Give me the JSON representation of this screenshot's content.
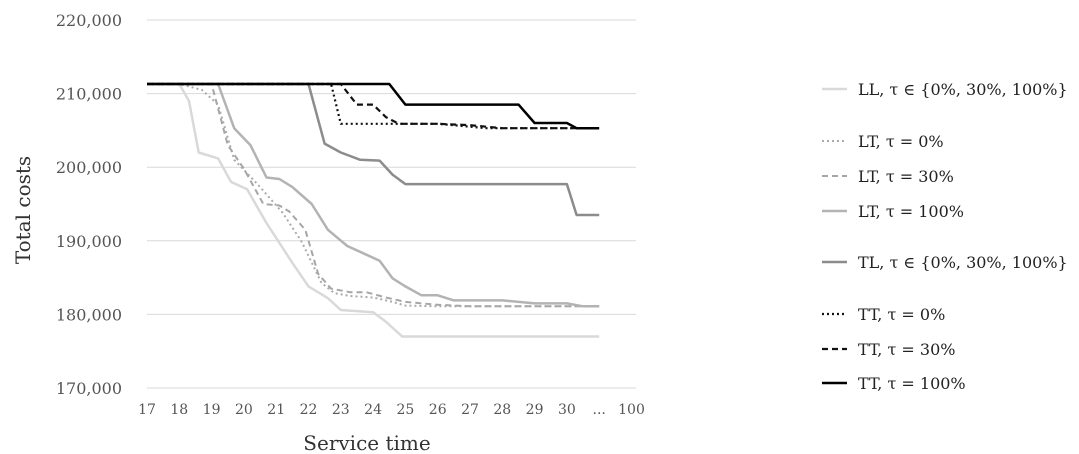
{
  "chart_data": {
    "type": "line",
    "title": "",
    "xlabel": "Service time",
    "ylabel": "Total costs",
    "x_tick_labels": [
      "17",
      "18",
      "19",
      "20",
      "21",
      "22",
      "23",
      "24",
      "25",
      "26",
      "27",
      "28",
      "29",
      "30",
      "...",
      "100"
    ],
    "y_tick_labels": [
      "170,000",
      "180,000",
      "190,000",
      "200,000",
      "210,000",
      "220,000"
    ],
    "ylim": [
      170000,
      220000
    ],
    "grid": "horizontal",
    "legend_placement": "right",
    "series": [
      {
        "name": "LL, τ ∈ {0%, 30%, 100%}",
        "color": "#d9d9d9",
        "dash": "solid",
        "width": 2.5,
        "x": [
          17,
          18,
          18.3,
          18.6,
          19.2,
          19.6,
          20.1,
          20.7,
          21.5,
          22.0,
          22.6,
          23.0,
          24.0,
          24.4,
          24.9,
          30,
          30.5,
          31
        ],
        "y": [
          211300,
          211300,
          209000,
          202000,
          201200,
          198000,
          197000,
          192400,
          187000,
          183800,
          182200,
          180600,
          180300,
          179000,
          177000,
          177000,
          177000,
          177000
        ]
      },
      {
        "name": "LT, τ = 0%",
        "color": "#aaaaaa",
        "dash": "dot",
        "width": 2,
        "x": [
          17,
          18,
          18.7,
          19.2,
          19.7,
          20.4,
          21.2,
          21.8,
          22.4,
          22.8,
          23.3,
          24.0,
          24.6,
          25.0,
          26,
          30,
          30.5,
          31
        ],
        "y": [
          211300,
          211300,
          210500,
          208500,
          201000,
          197800,
          193800,
          189800,
          184300,
          182900,
          182500,
          182300,
          181700,
          181200,
          181100,
          181100,
          181100,
          181100
        ]
      },
      {
        "name": "LT, τ = 30%",
        "color": "#a6a6a6",
        "dash": "dash",
        "width": 2,
        "x": [
          17,
          18,
          19,
          19.5,
          20.0,
          20.6,
          21.1,
          21.4,
          21.9,
          22.3,
          22.7,
          23.3,
          23.8,
          24.4,
          25.0,
          26,
          27,
          30,
          30.5,
          31
        ],
        "y": [
          211300,
          211300,
          211300,
          203000,
          199800,
          195000,
          194800,
          194000,
          191500,
          185500,
          183500,
          183000,
          183000,
          182300,
          181700,
          181300,
          181100,
          181100,
          181100,
          181100
        ]
      },
      {
        "name": "LT, τ = 100%",
        "color": "#b3b3b3",
        "dash": "solid",
        "width": 2.5,
        "x": [
          17,
          18,
          19.2,
          19.7,
          20.2,
          20.7,
          21.1,
          21.5,
          22.1,
          22.6,
          23.2,
          23.7,
          24.2,
          24.6,
          25.0,
          25.5,
          26.0,
          26.5,
          27,
          28,
          29,
          30,
          30.5,
          31
        ],
        "y": [
          211300,
          211300,
          211300,
          205300,
          203000,
          198600,
          198400,
          197300,
          195000,
          191500,
          189300,
          188300,
          187300,
          184900,
          183800,
          182600,
          182600,
          181900,
          181900,
          181900,
          181500,
          181500,
          181100,
          181100
        ]
      },
      {
        "name": "TL, τ ∈ {0%, 30%, 100%}",
        "color": "#8c8c8c",
        "dash": "solid",
        "width": 2.5,
        "x": [
          17,
          18,
          22,
          22.5,
          23.0,
          23.6,
          24.2,
          24.6,
          25.0,
          26,
          27,
          28,
          29,
          30,
          30.3,
          30.6,
          31
        ],
        "y": [
          211300,
          211300,
          211300,
          203200,
          202000,
          201000,
          200900,
          199000,
          197700,
          197700,
          197700,
          197700,
          197700,
          197700,
          193500,
          193500,
          193500
        ]
      },
      {
        "name": "TT, τ = 0%",
        "color": "#111111",
        "dash": "dot",
        "width": 2.2,
        "x": [
          17,
          18,
          22,
          22.7,
          23.0,
          24,
          25,
          26,
          27,
          27.5,
          28,
          29,
          30,
          31
        ],
        "y": [
          211300,
          211300,
          211300,
          211300,
          205900,
          205900,
          205900,
          205900,
          205500,
          205300,
          205300,
          205300,
          205300,
          205300
        ]
      },
      {
        "name": "TT, τ = 30%",
        "color": "#111111",
        "dash": "dash",
        "width": 2.2,
        "x": [
          17,
          18,
          22,
          23.0,
          23.5,
          24.0,
          24.4,
          24.8,
          25.0,
          26,
          27,
          28,
          29,
          30,
          31
        ],
        "y": [
          211300,
          211300,
          211300,
          211300,
          208500,
          208500,
          206800,
          205900,
          205900,
          205900,
          205700,
          205300,
          205300,
          205300,
          205300
        ]
      },
      {
        "name": "TT, τ = 100%",
        "color": "#000000",
        "dash": "solid",
        "width": 2.5,
        "x": [
          17,
          18,
          24.5,
          25.0,
          26,
          27,
          28,
          28.5,
          29,
          30,
          30.3,
          31
        ],
        "y": [
          211300,
          211300,
          211300,
          208500,
          208500,
          208500,
          208500,
          208500,
          206000,
          206000,
          205300,
          205300
        ]
      }
    ]
  }
}
